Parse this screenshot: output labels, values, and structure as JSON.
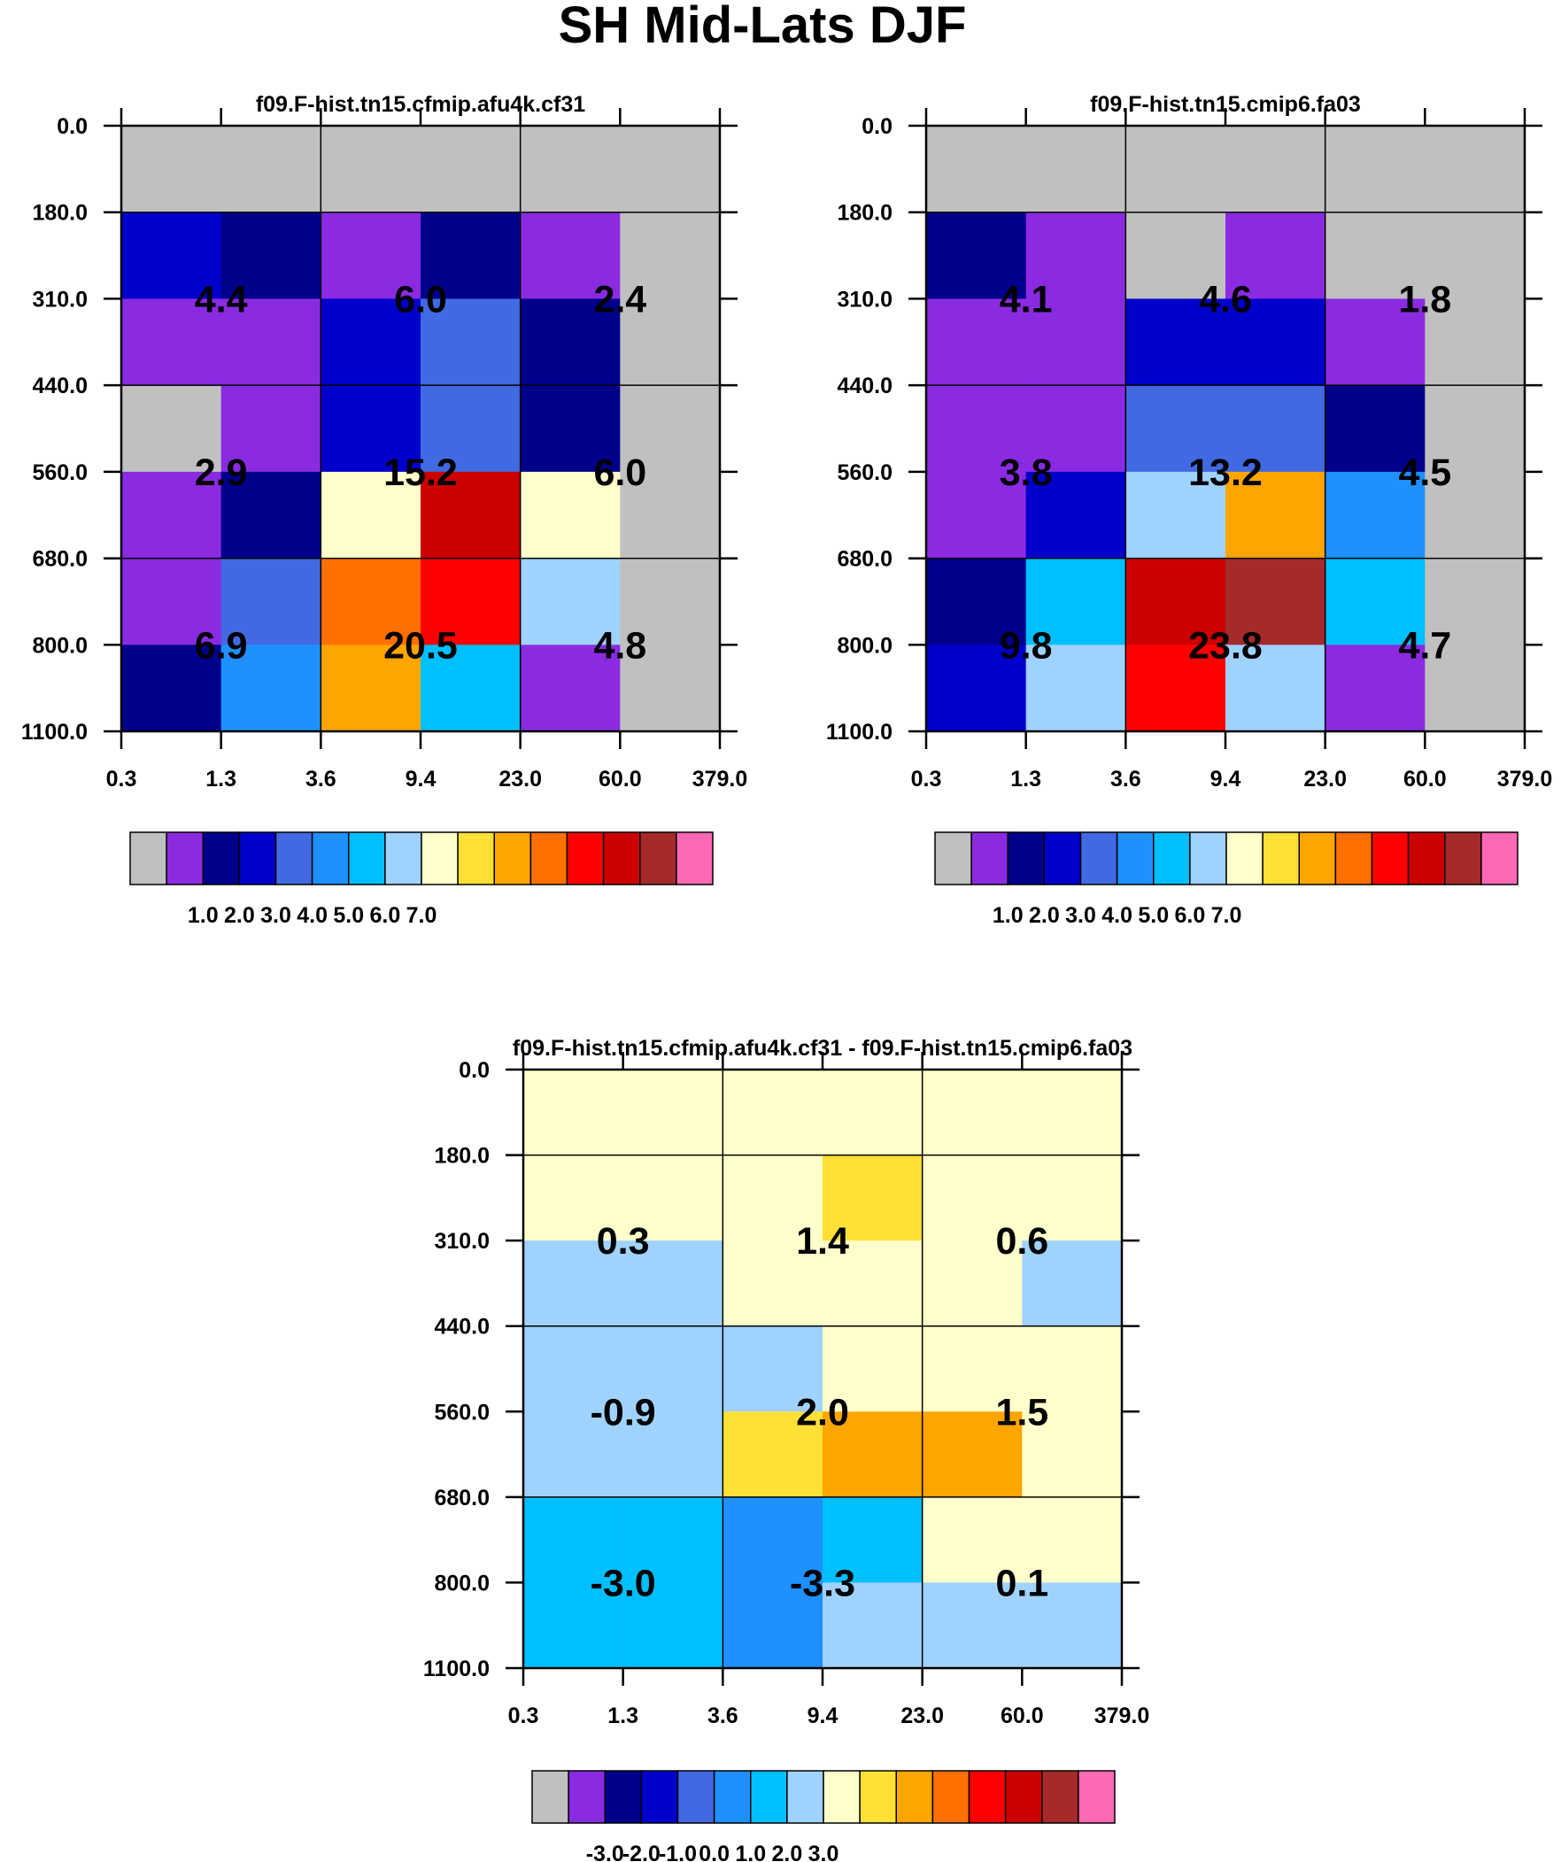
{
  "title": "SH Mid-Lats DJF",
  "colors": {
    "0": "#c0c0c0",
    "1": "#8a2be2",
    "2": "#00008b",
    "3": "#0000cd",
    "4": "#4169e1",
    "5": "#1e90ff",
    "6": "#00bfff",
    "7": "#a0d2ff",
    "8": "#ffffcc",
    "9": "#ffe135",
    "10": "#ffa500",
    "11": "#ff7000",
    "12": "#ff0000",
    "13": "#cc0000",
    "14": "#a52a2a",
    "15": "#ff69b4"
  },
  "chart_data": [
    {
      "type": "heatmap",
      "title": "f09.F-hist.tn15.cfmip.afu4k.cf31",
      "xlabel": "",
      "ylabel": "",
      "x_tick_labels": [
        "0.3",
        "1.3",
        "3.6",
        "9.4",
        "23.0",
        "60.0",
        "379.0"
      ],
      "y_tick_labels": [
        "0.0",
        "180.0",
        "310.0",
        "440.0",
        "560.0",
        "680.0",
        "800.0",
        "1100.0"
      ],
      "cell_color_levels": [
        [
          0,
          0,
          0,
          0,
          0,
          0
        ],
        [
          3,
          2,
          1,
          2,
          1,
          0
        ],
        [
          1,
          1,
          3,
          4,
          2,
          0
        ],
        [
          0,
          1,
          3,
          4,
          2,
          0
        ],
        [
          1,
          2,
          8,
          13,
          8,
          0
        ],
        [
          1,
          4,
          11,
          12,
          7,
          0
        ],
        [
          2,
          5,
          10,
          6,
          1,
          0
        ]
      ],
      "block_values": [
        [
          "4.4",
          "6.0",
          "2.4"
        ],
        [
          "2.9",
          "15.2",
          "6.0"
        ],
        [
          "6.9",
          "20.5",
          "4.8"
        ]
      ],
      "colorbar": {
        "box_levels": [
          0,
          1,
          2,
          3,
          4,
          5,
          6,
          7,
          8,
          9,
          10,
          11,
          12,
          13,
          14,
          15
        ],
        "labels": [
          "1.0",
          "2.0",
          "3.0",
          "4.0",
          "5.0",
          "6.0",
          "7.0"
        ]
      }
    },
    {
      "type": "heatmap",
      "title": "f09.F-hist.tn15.cmip6.fa03",
      "xlabel": "",
      "ylabel": "",
      "x_tick_labels": [
        "0.3",
        "1.3",
        "3.6",
        "9.4",
        "23.0",
        "60.0",
        "379.0"
      ],
      "y_tick_labels": [
        "0.0",
        "180.0",
        "310.0",
        "440.0",
        "560.0",
        "680.0",
        "800.0",
        "1100.0"
      ],
      "cell_color_levels": [
        [
          0,
          0,
          0,
          0,
          0,
          0
        ],
        [
          2,
          1,
          0,
          1,
          0,
          0
        ],
        [
          1,
          1,
          3,
          3,
          1,
          0
        ],
        [
          1,
          1,
          4,
          4,
          2,
          0
        ],
        [
          1,
          3,
          7,
          10,
          5,
          0
        ],
        [
          2,
          6,
          13,
          14,
          6,
          0
        ],
        [
          3,
          7,
          12,
          7,
          1,
          0
        ]
      ],
      "block_values": [
        [
          "4.1",
          "4.6",
          "1.8"
        ],
        [
          "3.8",
          "13.2",
          "4.5"
        ],
        [
          "9.8",
          "23.8",
          "4.7"
        ]
      ],
      "colorbar": {
        "box_levels": [
          0,
          1,
          2,
          3,
          4,
          5,
          6,
          7,
          8,
          9,
          10,
          11,
          12,
          13,
          14,
          15
        ],
        "labels": [
          "1.0",
          "2.0",
          "3.0",
          "4.0",
          "5.0",
          "6.0",
          "7.0"
        ]
      }
    },
    {
      "type": "heatmap",
      "title": "f09.F-hist.tn15.cfmip.afu4k.cf31 - f09.F-hist.tn15.cmip6.fa03",
      "xlabel": "",
      "ylabel": "",
      "x_tick_labels": [
        "0.3",
        "1.3",
        "3.6",
        "9.4",
        "23.0",
        "60.0",
        "379.0"
      ],
      "y_tick_labels": [
        "0.0",
        "180.0",
        "310.0",
        "440.0",
        "560.0",
        "680.0",
        "800.0",
        "1100.0"
      ],
      "cell_color_levels": [
        [
          8,
          8,
          8,
          8,
          8,
          8
        ],
        [
          8,
          8,
          8,
          9,
          8,
          8
        ],
        [
          7,
          7,
          8,
          8,
          8,
          7
        ],
        [
          7,
          7,
          7,
          8,
          8,
          8
        ],
        [
          7,
          7,
          9,
          10,
          10,
          8
        ],
        [
          6,
          6,
          5,
          6,
          8,
          8
        ],
        [
          6,
          6,
          5,
          7,
          7,
          7
        ]
      ],
      "block_values": [
        [
          "0.3",
          "1.4",
          "0.6"
        ],
        [
          "-0.9",
          "2.0",
          "1.5"
        ],
        [
          "-3.0",
          "-3.3",
          "0.1"
        ]
      ],
      "colorbar": {
        "box_levels": [
          0,
          1,
          2,
          3,
          4,
          5,
          6,
          7,
          8,
          9,
          10,
          11,
          12,
          13,
          14,
          15
        ],
        "labels": [
          "-3.0",
          "-2.0",
          "-1.0",
          "0.0",
          "1.0",
          "2.0",
          "3.0"
        ]
      }
    }
  ]
}
